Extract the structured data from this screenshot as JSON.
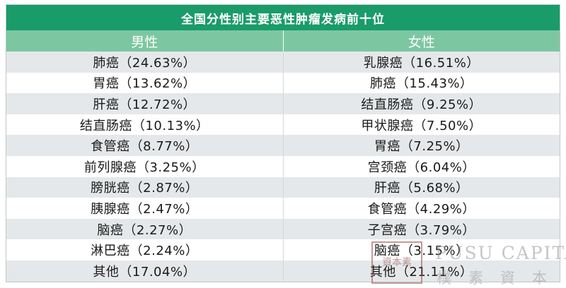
{
  "title": "全国分性别主要恶性肿瘤发病前十位",
  "headers": {
    "male": "男性",
    "female": "女性"
  },
  "rows": [
    {
      "male": "肺癌（24.63%）",
      "female": "乳腺癌（16.51%）"
    },
    {
      "male": "胃癌（13.62%）",
      "female": "肺癌（15.43%）"
    },
    {
      "male": "肝癌（12.72%）",
      "female": "结直肠癌（9.25%）"
    },
    {
      "male": "结直肠癌（10.13%）",
      "female": "甲状腺癌（7.50%）"
    },
    {
      "male": "食管癌（8.77%）",
      "female": "胃癌（7.25%）"
    },
    {
      "male": "前列腺癌（3.25%）",
      "female": "宫颈癌（6.04%）"
    },
    {
      "male": "膀胱癌（2.87%）",
      "female": "肝癌（5.68%）"
    },
    {
      "male": "胰腺癌（2.47%）",
      "female": "食管癌（4.29%）"
    },
    {
      "male": "脑癌（2.27%）",
      "female": "子宫癌（3.79%）"
    },
    {
      "male": "淋巴癌（2.24%）",
      "female": "脑癌（3.15%）"
    },
    {
      "male": "其他（17.04%）",
      "female": "其他（21.11%）"
    }
  ],
  "watermark": {
    "seal_text": "資本素",
    "latin": "PUSU CAPITAL",
    "cjk": "樸素資本"
  },
  "colors": {
    "title_bg": "#1a9b6a",
    "header_bg": "#7cc7a1",
    "row_alt_bg": "#e5e8ea"
  }
}
